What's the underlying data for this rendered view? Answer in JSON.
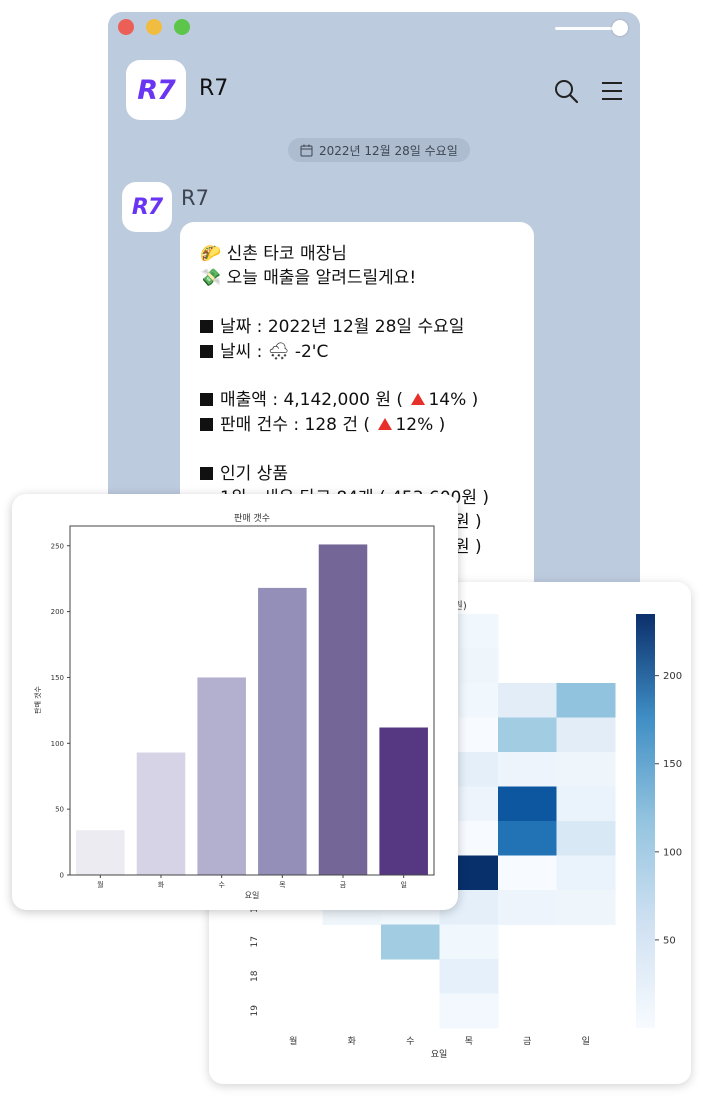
{
  "chat": {
    "room_title": "R7",
    "logo_text": "R7",
    "date_label": "2022년 12월 28일 수요일",
    "sender_name": "R7",
    "avatar_text": "R7",
    "message": {
      "greeting_emoji": "🌮",
      "greeting": "신촌 타코 매장님",
      "intro_emoji": "💸",
      "intro": "오늘 매출을 알려드릴게요!",
      "date_line": "날짜 : 2022년 12월 28일 수요일",
      "weather_prefix": "날씨 : ",
      "weather_emoji": "🌨",
      "weather_value": "-2'C",
      "sales_prefix": "매출액 : 4,142,000 원 ( ",
      "sales_change": "14% )",
      "count_prefix": "판매 건수 : 128 건 ( ",
      "count_change": "12% )",
      "popular_title": "인기 상품",
      "popular_line1": "1위 : 새우 타코 84개 ( 453,600원 )",
      "popular_line2_tail": "원 )",
      "popular_line3_tail": "원 )"
    }
  },
  "bar_chart": {
    "chart_data": {
      "type": "bar",
      "title": "판매 갯수",
      "xlabel": "요일",
      "ylabel": "판매 갯수",
      "categories": [
        "월",
        "화",
        "수",
        "목",
        "금",
        "일"
      ],
      "values": [
        34,
        93,
        150,
        218,
        251,
        112
      ],
      "ylim": [
        0,
        265
      ],
      "yticks": [
        0,
        50,
        100,
        150,
        200,
        250
      ],
      "colors": [
        "#ebebf1",
        "#d5d3e5",
        "#b3b0cf",
        "#938fb8",
        "#746798",
        "#563882"
      ]
    }
  },
  "heatmap": {
    "chart_data": {
      "type": "heatmap",
      "title_fragment": "만 원)",
      "xlabel": "요일",
      "x_categories": [
        "월",
        "화",
        "수",
        "목",
        "금",
        "일"
      ],
      "y_visible_labels": [
        "16",
        "17",
        "18",
        "19"
      ],
      "colorbar_ticks": [
        50,
        100,
        150,
        200
      ],
      "colorbar_range": [
        0,
        235
      ],
      "cmap": "Blues",
      "visible_cells": [
        {
          "row": 0,
          "col": 3,
          "value": 8
        },
        {
          "row": 1,
          "col": 3,
          "value": 10
        },
        {
          "row": 2,
          "col": 3,
          "value": 8
        },
        {
          "row": 2,
          "col": 4,
          "value": 25
        },
        {
          "row": 2,
          "col": 5,
          "value": 95
        },
        {
          "row": 3,
          "col": 3,
          "value": 0
        },
        {
          "row": 3,
          "col": 4,
          "value": 85
        },
        {
          "row": 3,
          "col": 5,
          "value": 25
        },
        {
          "row": 4,
          "col": 3,
          "value": 22
        },
        {
          "row": 4,
          "col": 4,
          "value": 12
        },
        {
          "row": 4,
          "col": 5,
          "value": 10
        },
        {
          "row": 5,
          "col": 3,
          "value": 12
        },
        {
          "row": 5,
          "col": 4,
          "value": 200
        },
        {
          "row": 5,
          "col": 5,
          "value": 15
        },
        {
          "row": 6,
          "col": 3,
          "value": 0
        },
        {
          "row": 6,
          "col": 4,
          "value": 175
        },
        {
          "row": 6,
          "col": 5,
          "value": 35
        },
        {
          "row": 7,
          "col": 3,
          "value": 235
        },
        {
          "row": 7,
          "col": 4,
          "value": 0
        },
        {
          "row": 7,
          "col": 5,
          "value": 15
        },
        {
          "row": 8,
          "col": 1,
          "value": 10
        },
        {
          "row": 8,
          "col": 2,
          "value": 8
        },
        {
          "row": 8,
          "col": 3,
          "value": 22
        },
        {
          "row": 8,
          "col": 4,
          "value": 12
        },
        {
          "row": 8,
          "col": 5,
          "value": 10
        },
        {
          "row": 9,
          "col": 2,
          "value": 85
        },
        {
          "row": 9,
          "col": 3,
          "value": 8
        },
        {
          "row": 10,
          "col": 3,
          "value": 20
        },
        {
          "row": 11,
          "col": 3,
          "value": 5
        }
      ]
    }
  },
  "colors": {
    "chat_background": "#bdcbde",
    "brand_purple": "#6a35f2"
  }
}
